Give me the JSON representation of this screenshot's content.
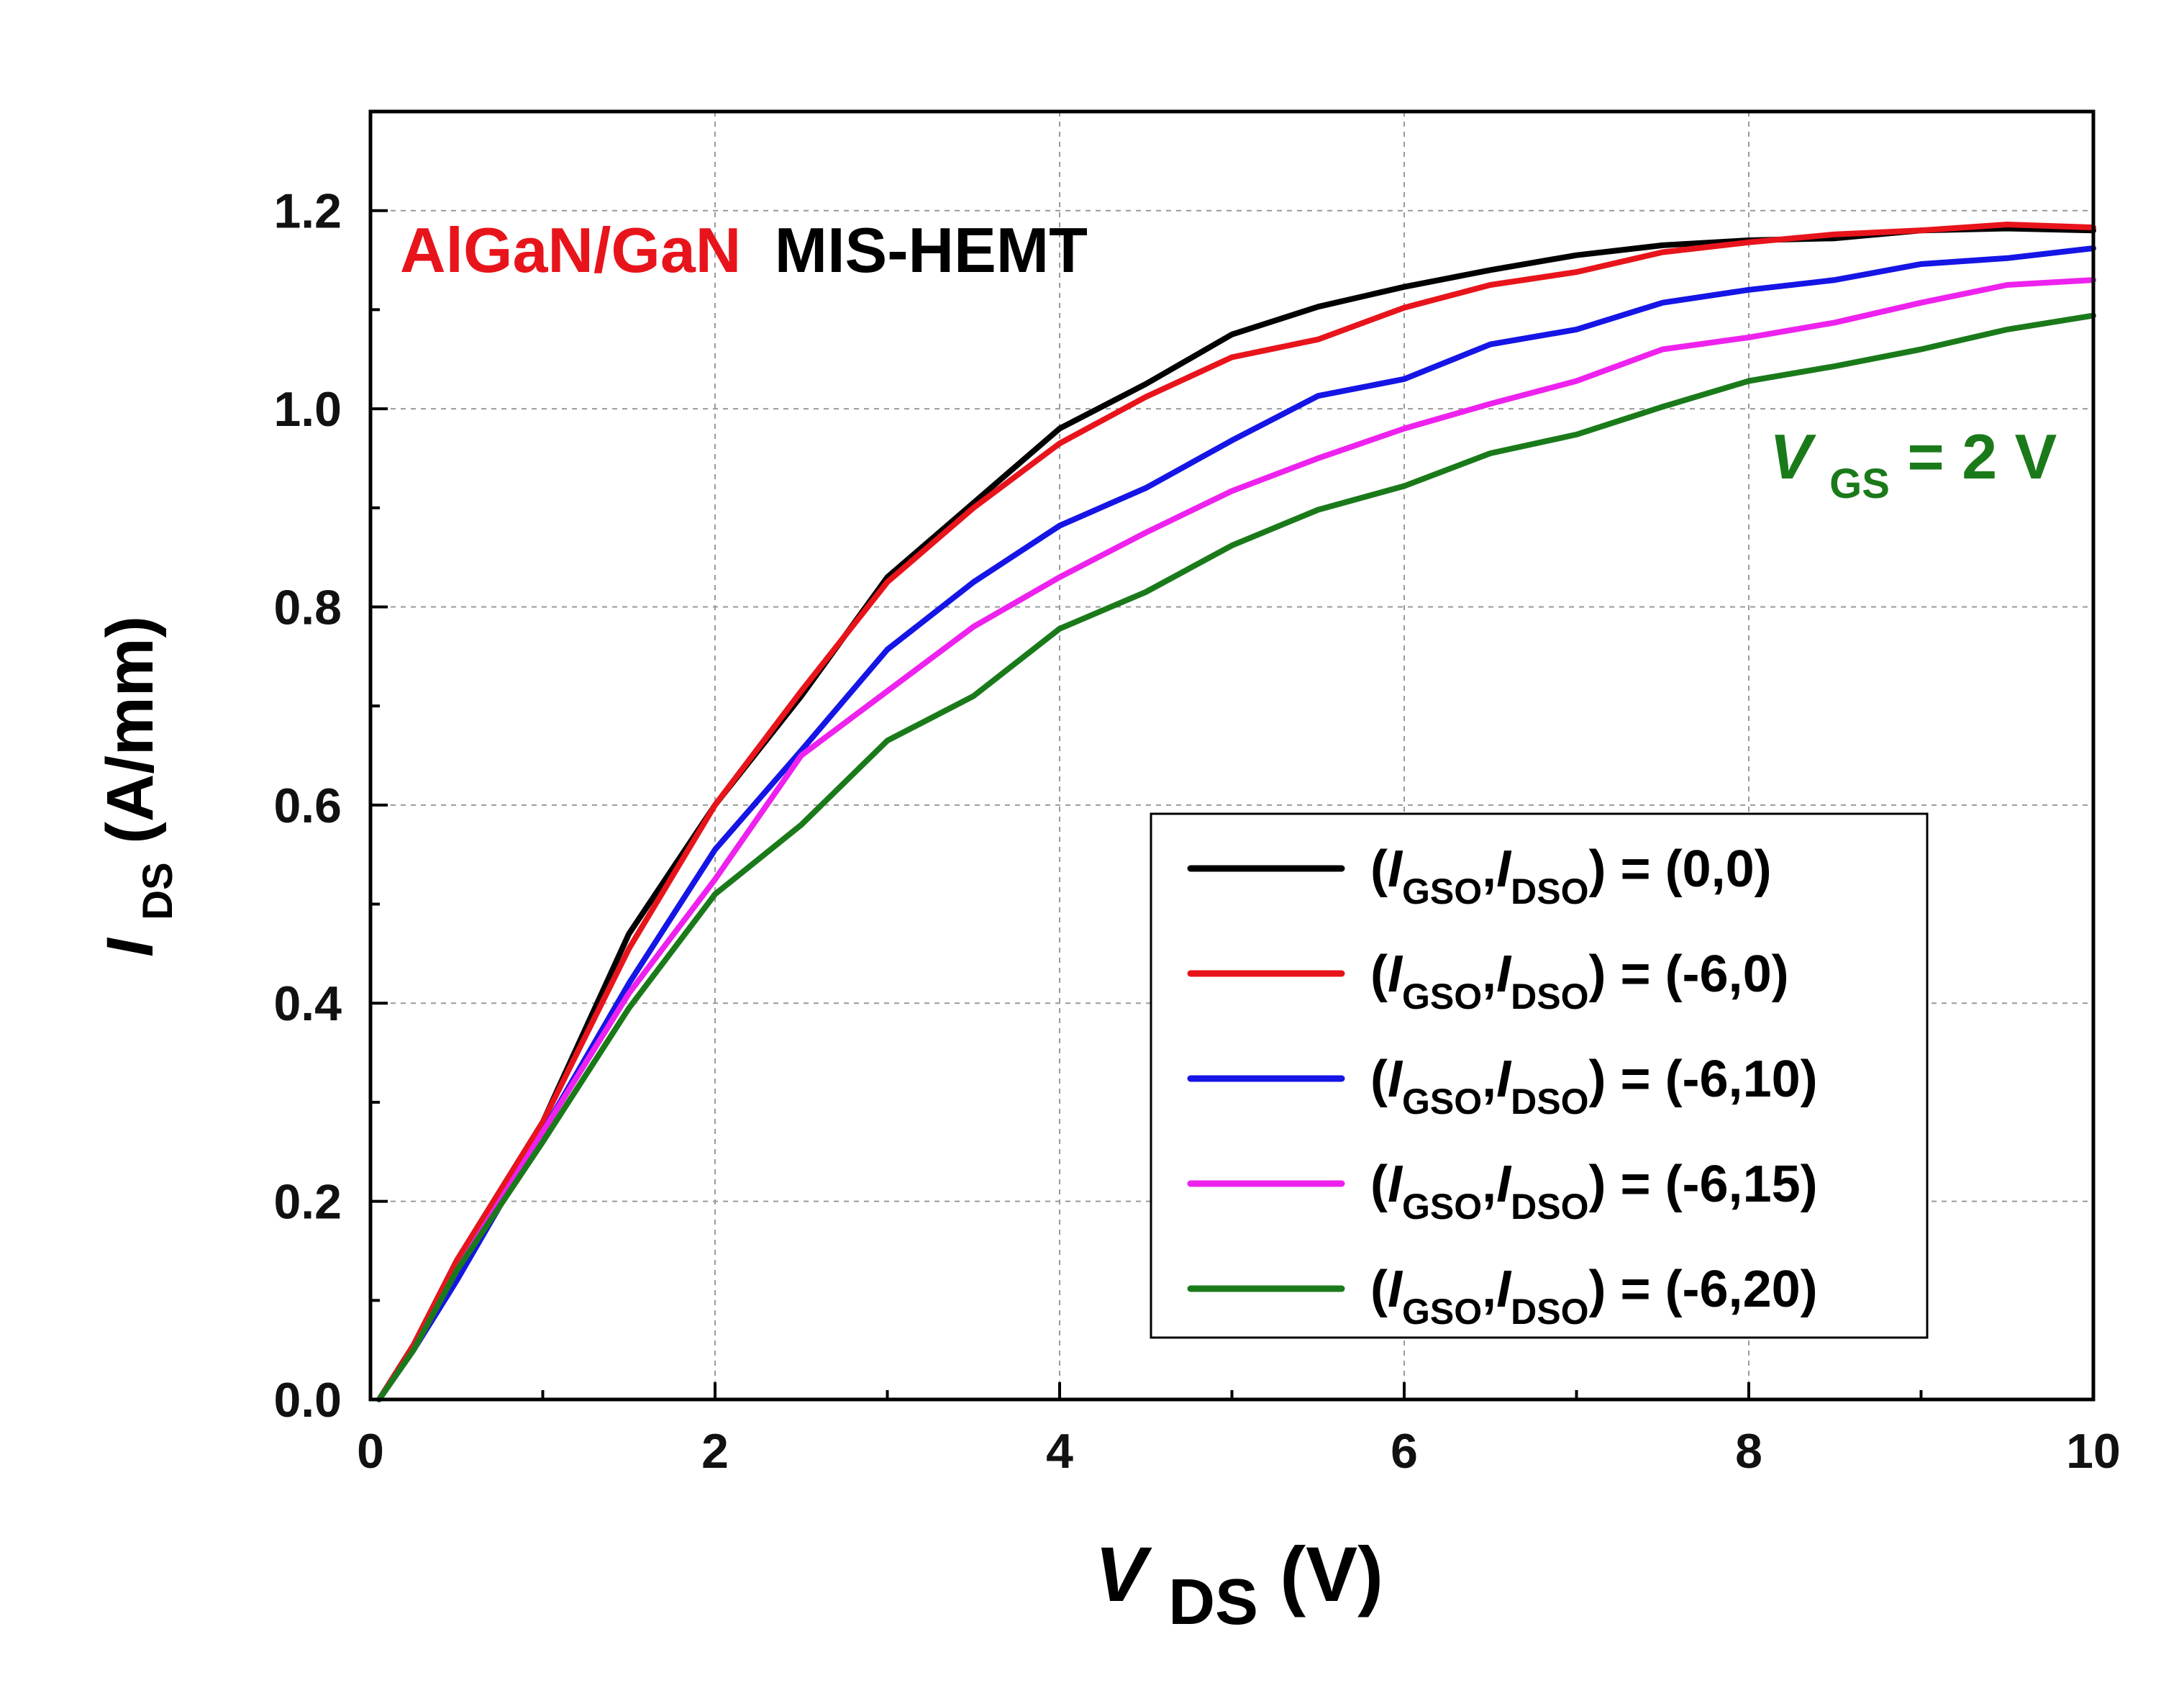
{
  "chart_data": {
    "type": "line",
    "title_part1": "AlGaN/GaN",
    "title_part2": "MIS-HEMT",
    "title_colors": [
      "#e8141b",
      "#000000"
    ],
    "annotation": {
      "main": "V",
      "sub": "GS",
      "rest": "= 2 V",
      "color": "#1a7a1a"
    },
    "xlabel": {
      "main": "V",
      "sub": "DS",
      "rest": " (V)"
    },
    "ylabel": {
      "main": "I",
      "sub": "DS",
      "rest": " (A/mm)"
    },
    "xlim": [
      0,
      10
    ],
    "ylim": [
      0,
      1.3
    ],
    "xticks": [
      0,
      2,
      4,
      6,
      8,
      10
    ],
    "xtick_labels": [
      "0",
      "2",
      "4",
      "6",
      "8",
      "10"
    ],
    "yticks": [
      0,
      0.2,
      0.4,
      0.6,
      0.8,
      1.0,
      1.2
    ],
    "ytick_labels": [
      "0.0",
      "0.2",
      "0.4",
      "0.6",
      "0.8",
      "1.0",
      "1.2"
    ],
    "grid": true,
    "legend_position": "center-right",
    "legend_template": {
      "open": "(",
      "i1": "I",
      "s1": "GSO",
      "comma": ",",
      "i2": "I",
      "s2": "DSO",
      "close": ") = "
    },
    "series": [
      {
        "name": "(I_GSO,I_DSO) = (0,0)",
        "value_label": "(0,0)",
        "color": "#000000",
        "x": [
          0.05,
          0.25,
          0.5,
          1.0,
          1.5,
          2.0,
          2.5,
          3.0,
          3.5,
          4.0,
          4.5,
          5.0,
          5.5,
          6.0,
          6.5,
          7.0,
          7.5,
          8.0,
          8.5,
          9.0,
          9.5,
          10.0
        ],
        "y": [
          0.0,
          0.055,
          0.14,
          0.28,
          0.47,
          0.6,
          0.71,
          0.83,
          0.905,
          0.98,
          1.025,
          1.075,
          1.103,
          1.123,
          1.14,
          1.155,
          1.165,
          1.17,
          1.172,
          1.18,
          1.182,
          1.18
        ]
      },
      {
        "name": "(I_GSO,I_DSO) = (-6,0)",
        "value_label": "(-6,0)",
        "color": "#e8141b",
        "x": [
          0.05,
          0.25,
          0.5,
          1.0,
          1.5,
          2.0,
          2.5,
          3.0,
          3.5,
          4.0,
          4.5,
          5.0,
          5.5,
          6.0,
          6.5,
          7.0,
          7.5,
          8.0,
          8.5,
          9.0,
          9.5,
          10.0
        ],
        "y": [
          0.0,
          0.055,
          0.14,
          0.28,
          0.455,
          0.6,
          0.715,
          0.825,
          0.9,
          0.965,
          1.012,
          1.052,
          1.07,
          1.102,
          1.125,
          1.138,
          1.158,
          1.168,
          1.176,
          1.18,
          1.186,
          1.183
        ]
      },
      {
        "name": "(I_GSO,I_DSO) = (-6,10)",
        "value_label": "(-6,10)",
        "color": "#1515e6",
        "x": [
          0.05,
          0.25,
          0.5,
          1.0,
          1.5,
          2.0,
          2.5,
          3.0,
          3.5,
          4.0,
          4.5,
          5.0,
          5.5,
          6.0,
          6.5,
          7.0,
          7.5,
          8.0,
          8.5,
          9.0,
          9.5,
          10.0
        ],
        "y": [
          0.0,
          0.05,
          0.12,
          0.27,
          0.42,
          0.555,
          0.655,
          0.757,
          0.825,
          0.882,
          0.92,
          0.968,
          1.013,
          1.03,
          1.065,
          1.08,
          1.107,
          1.12,
          1.13,
          1.146,
          1.152,
          1.162
        ]
      },
      {
        "name": "(I_GSO,I_DSO) = (-6,15)",
        "value_label": "(-6,15)",
        "color": "#ee22ee",
        "x": [
          0.05,
          0.25,
          0.5,
          1.0,
          1.5,
          2.0,
          2.5,
          3.0,
          3.5,
          4.0,
          4.5,
          5.0,
          5.5,
          6.0,
          6.5,
          7.0,
          7.5,
          8.0,
          8.5,
          9.0,
          9.5,
          10.0
        ],
        "y": [
          0.0,
          0.05,
          0.13,
          0.27,
          0.41,
          0.525,
          0.65,
          0.715,
          0.78,
          0.83,
          0.875,
          0.917,
          0.95,
          0.98,
          1.005,
          1.028,
          1.06,
          1.072,
          1.087,
          1.107,
          1.125,
          1.13
        ]
      },
      {
        "name": "(I_GSO,I_DSO) = (-6,20)",
        "value_label": "(-6,20)",
        "color": "#1a7a1a",
        "x": [
          0.05,
          0.25,
          0.5,
          1.0,
          1.5,
          2.0,
          2.5,
          3.0,
          3.5,
          4.0,
          4.5,
          5.0,
          5.5,
          6.0,
          6.5,
          7.0,
          7.5,
          8.0,
          8.5,
          9.0,
          9.5,
          10.0
        ],
        "y": [
          0.0,
          0.05,
          0.13,
          0.26,
          0.395,
          0.51,
          0.58,
          0.665,
          0.71,
          0.778,
          0.815,
          0.862,
          0.898,
          0.922,
          0.955,
          0.974,
          1.002,
          1.028,
          1.043,
          1.06,
          1.08,
          1.094
        ]
      }
    ]
  }
}
